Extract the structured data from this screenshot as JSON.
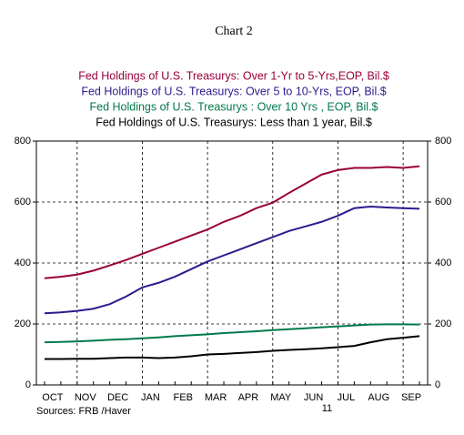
{
  "chart_data": {
    "type": "line",
    "title": "Chart 2",
    "categories": [
      "OCT",
      null,
      "NOV",
      null,
      "DEC",
      null,
      "JAN",
      null,
      "FEB",
      null,
      "MAR",
      null,
      "APR",
      null,
      "MAY",
      null,
      "JUN",
      null,
      "JUL",
      null,
      "AUG",
      null,
      "SEP",
      null
    ],
    "year_label": "11",
    "source": "Sources:  FRB /Haver",
    "series": [
      {
        "name": "Fed Holdings of U.S. Treasurys: Over 1-Yr to 5-Yrs,EOP, Bil.$",
        "color": "#99003a",
        "values": [
          350,
          355,
          362,
          375,
          392,
          410,
          430,
          450,
          470,
          490,
          510,
          535,
          555,
          580,
          598,
          630,
          660,
          690,
          705,
          712,
          712,
          715,
          712,
          717
        ]
      },
      {
        "name": "Fed Holdings of U.S. Treasurys: Over 5 to 10-Yrs, EOP, Bil.$",
        "color": "#2e1a8f",
        "values": [
          235,
          238,
          243,
          250,
          265,
          290,
          320,
          335,
          355,
          380,
          405,
          425,
          445,
          465,
          485,
          505,
          520,
          535,
          555,
          580,
          585,
          582,
          580,
          578
        ]
      },
      {
        "name": "Fed Holdings of U.S. Treasurys : Over 10 Yrs , EOP, Bil.$",
        "color": "#007a4a",
        "values": [
          140,
          141,
          143,
          145,
          148,
          150,
          153,
          156,
          160,
          163,
          166,
          170,
          173,
          176,
          180,
          183,
          186,
          189,
          192,
          195,
          198,
          199,
          199,
          198
        ]
      },
      {
        "name": "Fed Holdings of U.S. Treasurys: Less than 1 year, Bil.$",
        "color": "#000000",
        "values": [
          85,
          85,
          86,
          86,
          88,
          90,
          90,
          88,
          90,
          94,
          100,
          102,
          105,
          108,
          112,
          115,
          117,
          120,
          124,
          128,
          140,
          150,
          155,
          160
        ]
      }
    ],
    "ylim": [
      0,
      800
    ],
    "yticks": [
      0,
      200,
      400,
      600,
      800
    ],
    "y2lim": [
      0,
      800
    ],
    "y2ticks": [
      0,
      200,
      400,
      600,
      800
    ],
    "grid": true
  }
}
